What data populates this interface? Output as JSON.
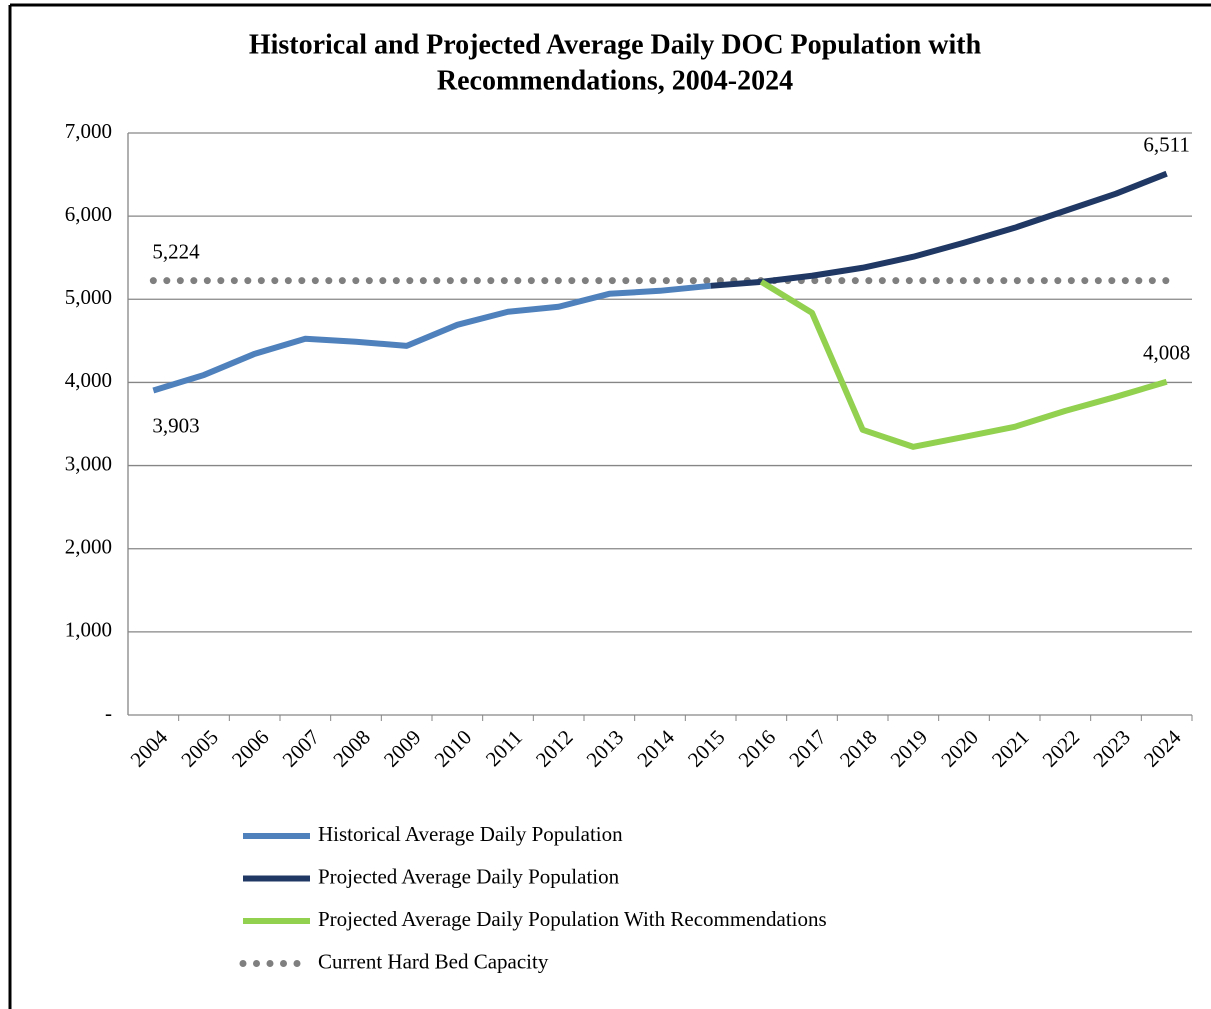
{
  "chart_data": {
    "type": "line",
    "title": [
      "Historical and Projected Average Daily DOC Population with",
      "Recommendations, 2004-2024"
    ],
    "categories": [
      "2004",
      "2005",
      "2006",
      "2007",
      "2008",
      "2009",
      "2010",
      "2011",
      "2012",
      "2013",
      "2014",
      "2015",
      "2016",
      "2017",
      "2018",
      "2019",
      "2020",
      "2021",
      "2022",
      "2023",
      "2024"
    ],
    "series": [
      {
        "name": "Historical Average Daily Population",
        "color": "#4f81bd",
        "style": "solid",
        "values": [
          3903,
          4090,
          4344,
          4525,
          4489,
          4440,
          4693,
          4850,
          4910,
          5066,
          5102,
          5162,
          null,
          null,
          null,
          null,
          null,
          null,
          null,
          null,
          null
        ],
        "value_labels": [
          "3,903",
          null,
          null,
          null,
          null,
          null,
          null,
          null,
          null,
          null,
          null,
          null,
          null,
          null,
          null,
          null,
          null,
          null,
          null,
          null,
          null
        ]
      },
      {
        "name": "Projected Average Daily Population",
        "color": "#1f3864",
        "style": "solid",
        "values": [
          null,
          null,
          null,
          null,
          null,
          null,
          null,
          null,
          null,
          null,
          null,
          5162,
          5210,
          5283,
          5379,
          5512,
          5680,
          5860,
          6065,
          6270,
          6511
        ],
        "value_labels": [
          null,
          null,
          null,
          null,
          null,
          null,
          null,
          null,
          null,
          null,
          null,
          null,
          null,
          null,
          null,
          null,
          null,
          null,
          null,
          null,
          "6,511"
        ]
      },
      {
        "name": "Projected Average Daily Population With Recommendations",
        "color": "#92d050",
        "style": "solid",
        "values": [
          null,
          null,
          null,
          null,
          null,
          null,
          null,
          null,
          null,
          null,
          null,
          null,
          5210,
          4838,
          3430,
          3225,
          3345,
          3466,
          3658,
          3827,
          4008
        ],
        "value_labels": [
          null,
          null,
          null,
          null,
          null,
          null,
          null,
          null,
          null,
          null,
          null,
          null,
          null,
          null,
          null,
          null,
          null,
          null,
          null,
          null,
          "4,008"
        ]
      },
      {
        "name": "Current Hard Bed Capacity",
        "color": "#7f7f7f",
        "style": "dotted",
        "values": [
          5224,
          5224,
          5224,
          5224,
          5224,
          5224,
          5224,
          5224,
          5224,
          5224,
          5224,
          5224,
          5224,
          5224,
          5224,
          5224,
          5224,
          5224,
          5224,
          5224,
          5224
        ],
        "value_labels": [
          "5,224",
          null,
          null,
          null,
          null,
          null,
          null,
          null,
          null,
          null,
          null,
          null,
          null,
          null,
          null,
          null,
          null,
          null,
          null,
          null,
          null
        ]
      }
    ],
    "ylim": [
      0,
      7000
    ],
    "yticks": [
      {
        "value": 0,
        "label": "-"
      },
      {
        "value": 1000,
        "label": "1,000"
      },
      {
        "value": 2000,
        "label": "2,000"
      },
      {
        "value": 3000,
        "label": "3,000"
      },
      {
        "value": 4000,
        "label": "4,000"
      },
      {
        "value": 5000,
        "label": "5,000"
      },
      {
        "value": 6000,
        "label": "6,000"
      },
      {
        "value": 7000,
        "label": "7,000"
      }
    ],
    "grid": true,
    "legend": "bottom"
  }
}
